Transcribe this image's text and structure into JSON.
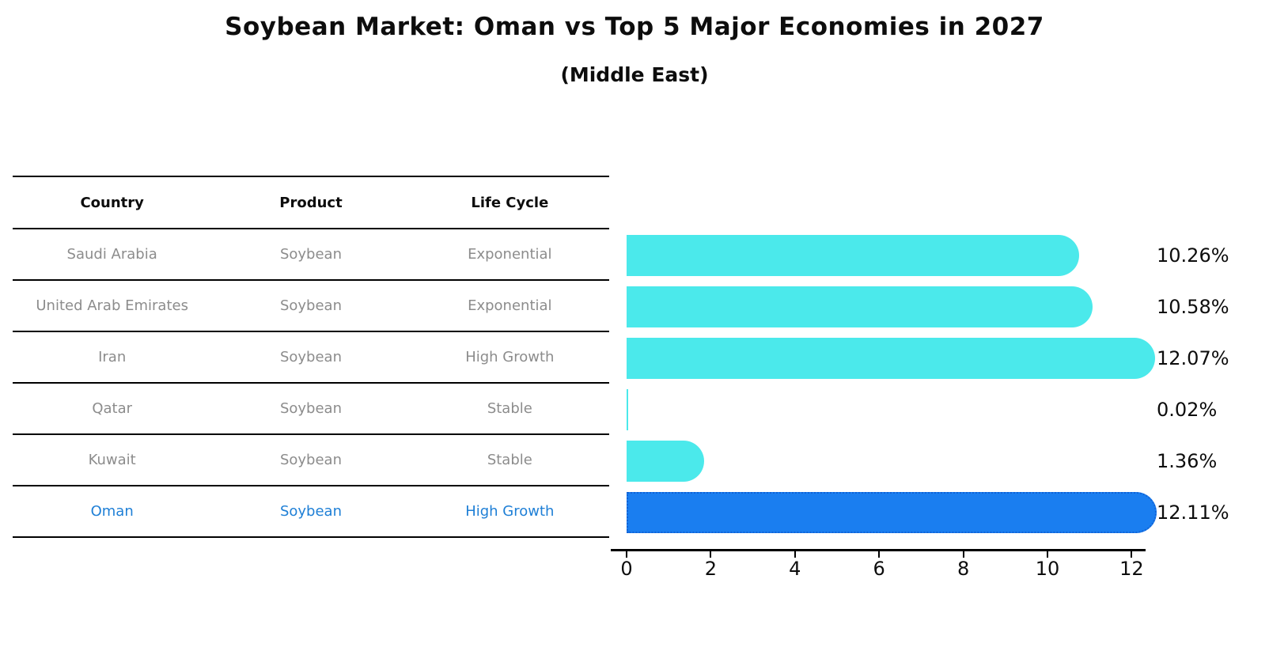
{
  "title": "Soybean Market: Oman vs Top 5 Major Economies in 2027",
  "subtitle": "(Middle East)",
  "table": {
    "headers": [
      "Country",
      "Product",
      "Life Cycle"
    ],
    "rows": [
      {
        "country": "Saudi Arabia",
        "product": "Soybean",
        "life_cycle": "Exponential",
        "highlight": false
      },
      {
        "country": "United Arab Emirates",
        "product": "Soybean",
        "life_cycle": "Exponential",
        "highlight": false
      },
      {
        "country": "Iran",
        "product": "Soybean",
        "life_cycle": "High Growth",
        "highlight": false
      },
      {
        "country": "Qatar",
        "product": "Soybean",
        "life_cycle": "Stable",
        "highlight": false
      },
      {
        "country": "Kuwait",
        "product": "Soybean",
        "life_cycle": "Stable",
        "highlight": false
      },
      {
        "country": "Oman",
        "product": "Soybean",
        "life_cycle": "High Growth",
        "highlight": true
      }
    ]
  },
  "chart_data": {
    "type": "bar",
    "orientation": "horizontal",
    "title": "Soybean Market: Oman vs Top 5 Major Economies in 2027",
    "subtitle": "(Middle East)",
    "categories": [
      "Saudi Arabia",
      "United Arab Emirates",
      "Iran",
      "Qatar",
      "Kuwait",
      "Oman"
    ],
    "values": [
      10.26,
      10.58,
      12.07,
      0.02,
      1.36,
      12.11
    ],
    "value_labels": [
      "10.26%",
      "10.58%",
      "12.07%",
      "0.02%",
      "1.36%",
      "12.11%"
    ],
    "unit": "%",
    "x_ticks": [
      0,
      2,
      4,
      6,
      8,
      10,
      12
    ],
    "xlim": [
      0,
      12.4
    ],
    "grid": false,
    "legend": "none",
    "highlight_index": 5,
    "colors": {
      "bar": "#4be9eb",
      "highlight_bar": "#1a7ef0",
      "highlight_border": "#1062d6",
      "highlight_text": "#1e7fd6",
      "row_text": "#8c8c8c",
      "axis": "#000000"
    }
  }
}
